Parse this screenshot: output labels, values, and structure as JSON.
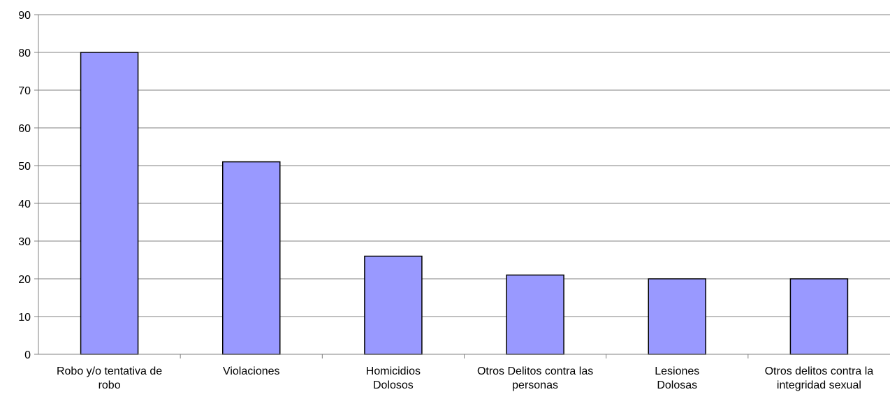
{
  "chart_data": {
    "type": "bar",
    "title": "",
    "xlabel": "",
    "ylabel": "",
    "ylim": [
      0,
      90
    ],
    "yticks": [
      0,
      10,
      20,
      30,
      40,
      50,
      60,
      70,
      80,
      90
    ],
    "grid": true,
    "categories": [
      [
        "Robo y/o tentativa de",
        "robo"
      ],
      [
        "Violaciones"
      ],
      [
        "Homicidios",
        "Dolosos"
      ],
      [
        "Otros Delitos contra las",
        "personas"
      ],
      [
        "Lesiones",
        "Dolosas"
      ],
      [
        "Otros delitos contra la",
        "integridad sexual"
      ]
    ],
    "values": [
      80,
      51,
      26,
      21,
      20,
      20
    ],
    "colors": {
      "bar": "#9999ff",
      "bar_border": "#000000",
      "grid": "#808080",
      "axis": "#808080"
    }
  }
}
